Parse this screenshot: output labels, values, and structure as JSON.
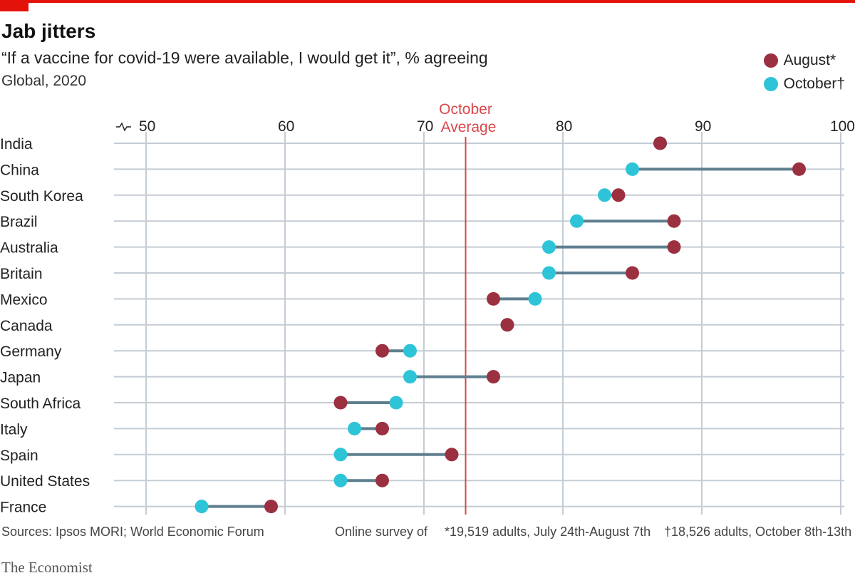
{
  "header": {
    "title": "Jab jitters",
    "subtitle": "“If a vaccine for covid-19 were available, I would get it”, % agreeing",
    "scope": "Global, 2020"
  },
  "legend": [
    {
      "label": "August*",
      "color": "#9b3041"
    },
    {
      "label": "October†",
      "color": "#2ec4d8"
    }
  ],
  "footer": {
    "sources": "Sources: Ipsos MORI; World Economic Forum",
    "note_prefix": "Online survey of",
    "note_aug": "*19,519 adults, July 24th-August 7th",
    "note_oct": "†18,526 adults, October 8th-13th",
    "brand": "The Economist"
  },
  "chart_data": {
    "type": "dumbbell",
    "title": "Jab jitters",
    "xlim": [
      50,
      100
    ],
    "xticks": [
      50,
      60,
      70,
      80,
      90,
      100
    ],
    "annotation": {
      "label_line1": "October",
      "label_line2": "Average",
      "value": 73
    },
    "categories": [
      "India",
      "China",
      "South Korea",
      "Brazil",
      "Australia",
      "Britain",
      "Mexico",
      "Canada",
      "Germany",
      "Japan",
      "South Africa",
      "Italy",
      "Spain",
      "United States",
      "France"
    ],
    "series": [
      {
        "name": "August*",
        "color": "#9b3041",
        "values": [
          87,
          97,
          84,
          88,
          88,
          85,
          75,
          76,
          67,
          75,
          64,
          67,
          72,
          67,
          59
        ]
      },
      {
        "name": "October†",
        "color": "#2ec4d8",
        "values": [
          87,
          85,
          83,
          81,
          79,
          79,
          78,
          76,
          69,
          69,
          68,
          65,
          64,
          64,
          54
        ]
      }
    ]
  }
}
